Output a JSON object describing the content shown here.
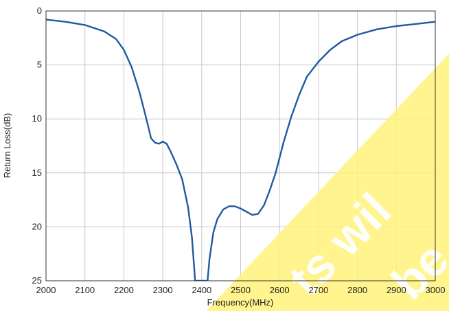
{
  "chart_data": {
    "type": "line",
    "title": "",
    "xlabel": "Frequency(MHz)",
    "ylabel": "Return Loss(dB)",
    "xlim": [
      2000,
      3000
    ],
    "ylim": [
      0,
      25
    ],
    "y_inverted": true,
    "grid": true,
    "x_ticks": [
      2000,
      2100,
      2200,
      2300,
      2400,
      2500,
      2600,
      2700,
      2800,
      2900,
      3000
    ],
    "y_ticks": [
      0,
      5,
      10,
      15,
      20,
      25
    ],
    "series": [
      {
        "color": "#1f5aa0",
        "points": [
          [
            2000,
            0.8
          ],
          [
            2050,
            1.0
          ],
          [
            2100,
            1.3
          ],
          [
            2150,
            1.9
          ],
          [
            2180,
            2.6
          ],
          [
            2200,
            3.6
          ],
          [
            2220,
            5.2
          ],
          [
            2240,
            7.5
          ],
          [
            2255,
            9.6
          ],
          [
            2270,
            11.8
          ],
          [
            2280,
            12.2
          ],
          [
            2290,
            12.3
          ],
          [
            2300,
            12.1
          ],
          [
            2310,
            12.3
          ],
          [
            2320,
            13.0
          ],
          [
            2335,
            14.2
          ],
          [
            2350,
            15.6
          ],
          [
            2365,
            18.2
          ],
          [
            2375,
            21.0
          ],
          [
            2380,
            23.5
          ],
          [
            2383,
            25
          ],
          [
            2415,
            25
          ],
          [
            2420,
            23.0
          ],
          [
            2430,
            20.5
          ],
          [
            2440,
            19.3
          ],
          [
            2455,
            18.4
          ],
          [
            2470,
            18.1
          ],
          [
            2485,
            18.1
          ],
          [
            2500,
            18.3
          ],
          [
            2515,
            18.6
          ],
          [
            2530,
            18.9
          ],
          [
            2545,
            18.8
          ],
          [
            2560,
            18.0
          ],
          [
            2575,
            16.6
          ],
          [
            2590,
            15.0
          ],
          [
            2610,
            12.2
          ],
          [
            2630,
            9.8
          ],
          [
            2650,
            7.8
          ],
          [
            2670,
            6.1
          ],
          [
            2700,
            4.7
          ],
          [
            2730,
            3.6
          ],
          [
            2760,
            2.8
          ],
          [
            2800,
            2.2
          ],
          [
            2850,
            1.7
          ],
          [
            2900,
            1.4
          ],
          [
            2950,
            1.2
          ],
          [
            3000,
            1.0
          ]
        ]
      }
    ]
  }
}
